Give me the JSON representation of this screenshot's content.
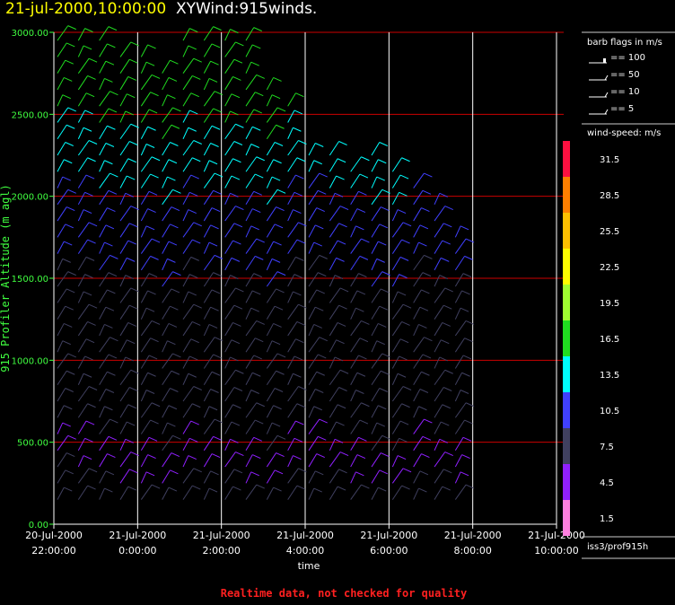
{
  "header": {
    "date_label": "21-jul-2000,10:00:00",
    "plot_name": "XYWind:915winds."
  },
  "footer": {
    "quality_note": "Realtime data, not checked for quality",
    "source_label": "iss3/prof915h"
  },
  "colors": {
    "background": "#000000",
    "grid_horizontal": "#cc0000",
    "grid_vertical": "#ffffff",
    "ylabel": "#40ff40",
    "quality_note": "#ff2020"
  },
  "chart_data": {
    "type": "wind-barb time-height",
    "xlabel": "time",
    "ylabel": "915 Profiler Altitude (m agl)",
    "ylim": [
      0,
      3000
    ],
    "yticks": [
      "0.00",
      "500.00",
      "1000.00",
      "1500.00",
      "2000.00",
      "2500.00",
      "3000.00"
    ],
    "xticks": [
      {
        "line1": "20-Jul-2000",
        "line2": "22:00:00"
      },
      {
        "line1": "21-Jul-2000",
        "line2": "0:00:00"
      },
      {
        "line1": "21-Jul-2000",
        "line2": "2:00:00"
      },
      {
        "line1": "21-Jul-2000",
        "line2": "4:00:00"
      },
      {
        "line1": "21-Jul-2000",
        "line2": "6:00:00"
      },
      {
        "line1": "21-Jul-2000",
        "line2": "8:00:00"
      },
      {
        "line1": "21-Jul-2000",
        "line2": "10:00:00"
      }
    ],
    "grid": true,
    "barb_legend": {
      "title": "barb flags in m/s",
      "entries": [
        "== 100",
        "== 50",
        "== 10",
        "== 5"
      ]
    },
    "speed_legend": {
      "title": "wind-speed: m/s",
      "bins": [
        {
          "label": "31.5",
          "color": "#ff1040"
        },
        {
          "label": "28.5",
          "color": "#ff8000"
        },
        {
          "label": "25.5",
          "color": "#ffc000"
        },
        {
          "label": "22.5",
          "color": "#ffff00"
        },
        {
          "label": "19.5",
          "color": "#a0ff30"
        },
        {
          "label": "16.5",
          "color": "#20dd20"
        },
        {
          "label": "13.5",
          "color": "#00ffff"
        },
        {
          "label": "10.5",
          "color": "#4040ff"
        },
        {
          "label": "7.5",
          "color": "#404060"
        },
        {
          "label": "4.5",
          "color": "#9020ff"
        },
        {
          "label": "1.5",
          "color": "#ff80e0"
        }
      ]
    },
    "barb_time_offsets_h": [
      0.0,
      0.5,
      1.0,
      1.5,
      2.0,
      2.5,
      3.0,
      3.5,
      4.0,
      4.5,
      5.0,
      5.5,
      6.0,
      6.5,
      7.0,
      7.5,
      8.0,
      8.5,
      9.0,
      9.5
    ],
    "barb_top_altitude_m": [
      3000,
      3000,
      3000,
      2900,
      2850,
      2800,
      2950,
      3000,
      3000,
      2950,
      2650,
      2580,
      2300,
      2250,
      2200,
      2250,
      2150,
      2100,
      2000,
      1750
    ],
    "barb_altitude_step_m": 100
  }
}
